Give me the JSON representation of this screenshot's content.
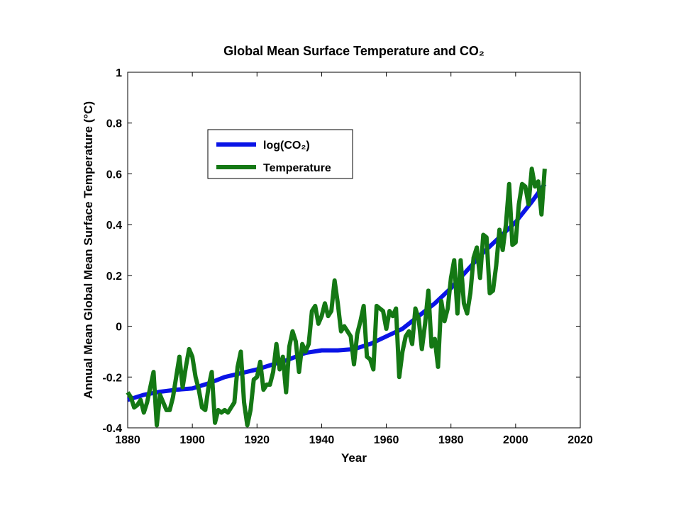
{
  "chart_data": {
    "type": "line",
    "title": "Global Mean Surface Temperature and CO₂",
    "xlabel": "Year",
    "ylabel": "Annual Mean Global Mean Surface Temperature (°C)",
    "xlim": [
      1880,
      2020
    ],
    "xticks": [
      1880,
      1900,
      1920,
      1940,
      1960,
      1980,
      2000,
      2020
    ],
    "ylim": [
      -0.4,
      1
    ],
    "yticks": [
      -0.4,
      -0.2,
      0,
      0.2,
      0.4,
      0.6,
      0.8,
      1
    ],
    "legend": "upper left",
    "series": [
      {
        "name": "log(CO₂)",
        "color": "#0a14e6",
        "x": [
          1880,
          1885,
          1890,
          1895,
          1900,
          1905,
          1910,
          1915,
          1920,
          1925,
          1930,
          1935,
          1940,
          1945,
          1950,
          1955,
          1960,
          1965,
          1970,
          1975,
          1980,
          1985,
          1990,
          1995,
          2000,
          2005,
          2009
        ],
        "values": [
          -0.29,
          -0.27,
          -0.258,
          -0.25,
          -0.245,
          -0.225,
          -0.2,
          -0.185,
          -0.17,
          -0.15,
          -0.13,
          -0.105,
          -0.095,
          -0.095,
          -0.09,
          -0.07,
          -0.04,
          -0.01,
          0.04,
          0.09,
          0.15,
          0.22,
          0.29,
          0.35,
          0.41,
          0.49,
          0.56
        ]
      },
      {
        "name": "Temperature",
        "color": "#147814",
        "x": [
          1880,
          1881,
          1882,
          1883,
          1884,
          1885,
          1886,
          1887,
          1888,
          1889,
          1890,
          1891,
          1892,
          1893,
          1894,
          1895,
          1896,
          1897,
          1898,
          1899,
          1900,
          1901,
          1902,
          1903,
          1904,
          1905,
          1906,
          1907,
          1908,
          1909,
          1910,
          1911,
          1912,
          1913,
          1914,
          1915,
          1916,
          1917,
          1918,
          1919,
          1920,
          1921,
          1922,
          1923,
          1924,
          1925,
          1926,
          1927,
          1928,
          1929,
          1930,
          1931,
          1932,
          1933,
          1934,
          1935,
          1936,
          1937,
          1938,
          1939,
          1940,
          1941,
          1942,
          1943,
          1944,
          1945,
          1946,
          1947,
          1948,
          1949,
          1950,
          1951,
          1952,
          1953,
          1954,
          1955,
          1956,
          1957,
          1958,
          1959,
          1960,
          1961,
          1962,
          1963,
          1964,
          1965,
          1966,
          1967,
          1968,
          1969,
          1970,
          1971,
          1972,
          1973,
          1974,
          1975,
          1976,
          1977,
          1978,
          1979,
          1980,
          1981,
          1982,
          1983,
          1984,
          1985,
          1986,
          1987,
          1988,
          1989,
          1990,
          1991,
          1992,
          1993,
          1994,
          1995,
          1996,
          1997,
          1998,
          1999,
          2000,
          2001,
          2002,
          2003,
          2004,
          2005,
          2006,
          2007,
          2008,
          2009
        ],
        "values": [
          -0.26,
          -0.28,
          -0.32,
          -0.31,
          -0.29,
          -0.34,
          -0.3,
          -0.24,
          -0.18,
          -0.39,
          -0.27,
          -0.3,
          -0.33,
          -0.33,
          -0.28,
          -0.2,
          -0.12,
          -0.24,
          -0.16,
          -0.09,
          -0.12,
          -0.2,
          -0.25,
          -0.32,
          -0.33,
          -0.24,
          -0.18,
          -0.38,
          -0.33,
          -0.34,
          -0.33,
          -0.34,
          -0.32,
          -0.3,
          -0.16,
          -0.1,
          -0.3,
          -0.39,
          -0.33,
          -0.21,
          -0.2,
          -0.14,
          -0.25,
          -0.23,
          -0.23,
          -0.18,
          -0.07,
          -0.17,
          -0.12,
          -0.26,
          -0.08,
          -0.02,
          -0.06,
          -0.18,
          -0.07,
          -0.1,
          -0.07,
          0.06,
          0.08,
          0.01,
          0.04,
          0.09,
          0.04,
          0.06,
          0.18,
          0.09,
          -0.02,
          0,
          -0.02,
          -0.04,
          -0.15,
          -0.03,
          0.02,
          0.08,
          -0.12,
          -0.13,
          -0.17,
          0.08,
          0.07,
          0.06,
          -0.01,
          0.06,
          0.04,
          0.07,
          -0.2,
          -0.1,
          -0.04,
          -0.02,
          -0.07,
          0.07,
          0.03,
          -0.09,
          0.01,
          0.14,
          -0.08,
          -0.05,
          -0.16,
          0.1,
          0.02,
          0.07,
          0.19,
          0.26,
          0.05,
          0.26,
          0.09,
          0.05,
          0.13,
          0.27,
          0.31,
          0.19,
          0.36,
          0.35,
          0.13,
          0.14,
          0.24,
          0.38,
          0.3,
          0.4,
          0.56,
          0.32,
          0.33,
          0.48,
          0.56,
          0.55,
          0.48,
          0.62,
          0.55,
          0.57,
          0.44,
          0.62
        ]
      }
    ]
  }
}
